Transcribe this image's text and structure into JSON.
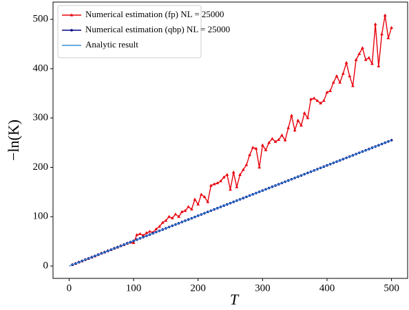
{
  "chart_data": {
    "type": "line",
    "xlabel": "T",
    "ylabel": "−ln(K)",
    "xlim": [
      -25,
      525
    ],
    "ylim": [
      -25,
      535
    ],
    "xticks": [
      0,
      100,
      200,
      300,
      400,
      500
    ],
    "yticks": [
      0,
      100,
      200,
      300,
      400,
      500
    ],
    "legend": "upper left",
    "x": [
      5,
      10,
      15,
      20,
      25,
      30,
      35,
      40,
      45,
      50,
      55,
      60,
      65,
      70,
      75,
      80,
      85,
      90,
      95,
      100,
      105,
      110,
      115,
      120,
      125,
      130,
      135,
      140,
      145,
      150,
      155,
      160,
      165,
      170,
      175,
      180,
      185,
      190,
      195,
      200,
      205,
      210,
      215,
      220,
      225,
      230,
      235,
      240,
      245,
      250,
      255,
      260,
      265,
      270,
      275,
      280,
      285,
      290,
      295,
      300,
      305,
      310,
      315,
      320,
      325,
      330,
      335,
      340,
      345,
      350,
      355,
      360,
      365,
      370,
      375,
      380,
      385,
      390,
      395,
      400,
      405,
      410,
      415,
      420,
      425,
      430,
      435,
      440,
      445,
      450,
      455,
      460,
      465,
      470,
      475,
      480,
      485,
      490,
      495,
      500
    ],
    "series": [
      {
        "name": "Numerical estimation (fp) NL = 25000",
        "color": "#e8000b",
        "marker": "triangle",
        "values": [
          2.6,
          5,
          8,
          10,
          13,
          15,
          18,
          20,
          23,
          26,
          28,
          31,
          33,
          36,
          38,
          41,
          43,
          46,
          48,
          47,
          63,
          65,
          62,
          67,
          70,
          68,
          75,
          80,
          88,
          92,
          100,
          97,
          105,
          100,
          110,
          112,
          120,
          115,
          135,
          125,
          145,
          140,
          130,
          163,
          166,
          168,
          172,
          180,
          185,
          155,
          190,
          160,
          185,
          195,
          205,
          225,
          240,
          238,
          200,
          245,
          235,
          250,
          258,
          252,
          256,
          265,
          255,
          280,
          305,
          275,
          295,
          285,
          310,
          300,
          338,
          340,
          335,
          330,
          335,
          352,
          355,
          372,
          385,
          372,
          390,
          412,
          385,
          365,
          418,
          430,
          442,
          418,
          422,
          410,
          490,
          405,
          470,
          508,
          462,
          483
        ]
      },
      {
        "name": "Numerical estimation (qbp) NL = 25000",
        "color": "#000080",
        "marker": "circle",
        "values": [
          2.55,
          5.1,
          7.65,
          10.2,
          12.75,
          15.3,
          17.85,
          20.4,
          22.95,
          25.5,
          28.05,
          30.6,
          33.15,
          35.7,
          38.25,
          40.8,
          43.35,
          45.9,
          48.45,
          51,
          53.55,
          56.1,
          58.65,
          61.2,
          63.75,
          66.3,
          68.85,
          71.4,
          73.95,
          76.5,
          79.05,
          81.6,
          84.15,
          86.7,
          89.25,
          91.8,
          94.35,
          96.9,
          99.45,
          102,
          104.55,
          107.1,
          109.65,
          112.2,
          114.75,
          117.3,
          119.85,
          122.4,
          124.95,
          127.5,
          130.05,
          132.6,
          135.15,
          137.7,
          140.25,
          142.8,
          145.35,
          147.9,
          150.45,
          153,
          155.55,
          158.1,
          160.65,
          163.2,
          165.75,
          168.3,
          170.85,
          173.4,
          175.95,
          178.5,
          181.05,
          183.6,
          186.15,
          188.7,
          191.25,
          193.8,
          196.35,
          198.9,
          201.45,
          204,
          206.55,
          209.1,
          211.65,
          214.2,
          216.75,
          219.3,
          221.85,
          224.4,
          226.95,
          229.5,
          232.05,
          234.6,
          237.15,
          239.7,
          242.25,
          244.8,
          247.35,
          249.9,
          252.45,
          255
        ]
      },
      {
        "name": "Analytic result",
        "color": "#3a8fd9",
        "x": [
          0,
          500
        ],
        "values": [
          0,
          255
        ]
      }
    ]
  }
}
